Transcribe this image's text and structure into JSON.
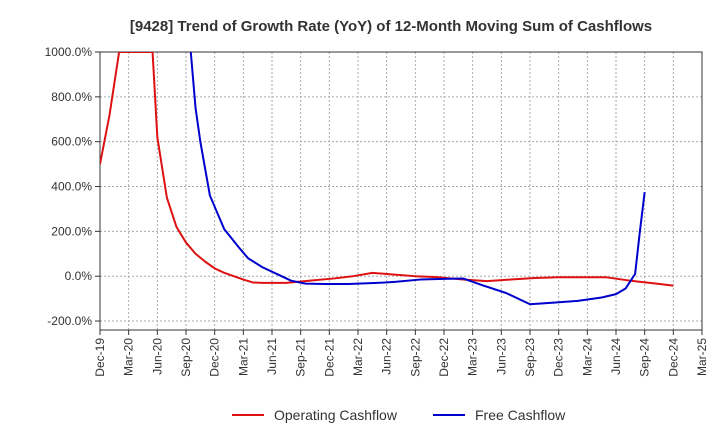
{
  "chart_data": {
    "type": "line",
    "title": "[9428]  Trend of Growth Rate (YoY) of 12-Month Moving Sum of Cashflows",
    "xlabel": "",
    "ylabel": "",
    "ylim": [
      -240,
      1000
    ],
    "yticks": [
      -200,
      0,
      200,
      400,
      600,
      800,
      1000
    ],
    "ytick_labels": [
      "-200.0%",
      "0.0%",
      "200.0%",
      "400.0%",
      "600.0%",
      "800.0%",
      "1000.0%"
    ],
    "x_categories": [
      "Dec-19",
      "Mar-20",
      "Jun-20",
      "Sep-20",
      "Dec-20",
      "Mar-21",
      "Jun-21",
      "Sep-21",
      "Dec-21",
      "Mar-22",
      "Jun-22",
      "Sep-22",
      "Dec-22",
      "Mar-23",
      "Jun-23",
      "Sep-23",
      "Dec-23",
      "Mar-24",
      "Jun-24",
      "Sep-24",
      "Dec-24",
      "Mar-25"
    ],
    "grid": true,
    "legend_position": "bottom",
    "series": [
      {
        "name": "Operating Cashflow",
        "color": "#dd1111",
        "points": [
          [
            0,
            500
          ],
          [
            2,
            720
          ],
          [
            4,
            1000
          ],
          [
            11,
            1000
          ],
          [
            12,
            620
          ],
          [
            14,
            350
          ],
          [
            16,
            220
          ],
          [
            18,
            150
          ],
          [
            20,
            100
          ],
          [
            22,
            65
          ],
          [
            24,
            35
          ],
          [
            26,
            15
          ],
          [
            28,
            0
          ],
          [
            30,
            -15
          ],
          [
            32,
            -28
          ],
          [
            34,
            -30
          ],
          [
            39,
            -30
          ],
          [
            44,
            -20
          ],
          [
            49,
            -10
          ],
          [
            53,
            0
          ],
          [
            57,
            15
          ],
          [
            61,
            8
          ],
          [
            66,
            0
          ],
          [
            71,
            -5
          ],
          [
            76,
            -15
          ],
          [
            81,
            -22
          ],
          [
            86,
            -15
          ],
          [
            91,
            -8
          ],
          [
            96,
            -5
          ],
          [
            101,
            -5
          ],
          [
            106,
            -5
          ],
          [
            111,
            -20
          ],
          [
            116,
            -32
          ],
          [
            120,
            -42
          ]
        ]
      },
      {
        "name": "Free Cashflow",
        "color": "#0000cc",
        "points": [
          [
            19,
            1000
          ],
          [
            20,
            750
          ],
          [
            21,
            600
          ],
          [
            23,
            360
          ],
          [
            26,
            210
          ],
          [
            29,
            130
          ],
          [
            31,
            80
          ],
          [
            34,
            40
          ],
          [
            37,
            10
          ],
          [
            40,
            -20
          ],
          [
            43,
            -33
          ],
          [
            47,
            -35
          ],
          [
            52,
            -35
          ],
          [
            58,
            -30
          ],
          [
            62,
            -25
          ],
          [
            67,
            -15
          ],
          [
            72,
            -12
          ],
          [
            76,
            -10
          ],
          [
            80,
            -40
          ],
          [
            85,
            -75
          ],
          [
            90,
            -125
          ],
          [
            95,
            -118
          ],
          [
            100,
            -110
          ],
          [
            105,
            -95
          ],
          [
            108,
            -80
          ],
          [
            110,
            -55
          ],
          [
            112,
            10
          ],
          [
            113,
            200
          ],
          [
            114,
            375
          ]
        ]
      }
    ]
  }
}
